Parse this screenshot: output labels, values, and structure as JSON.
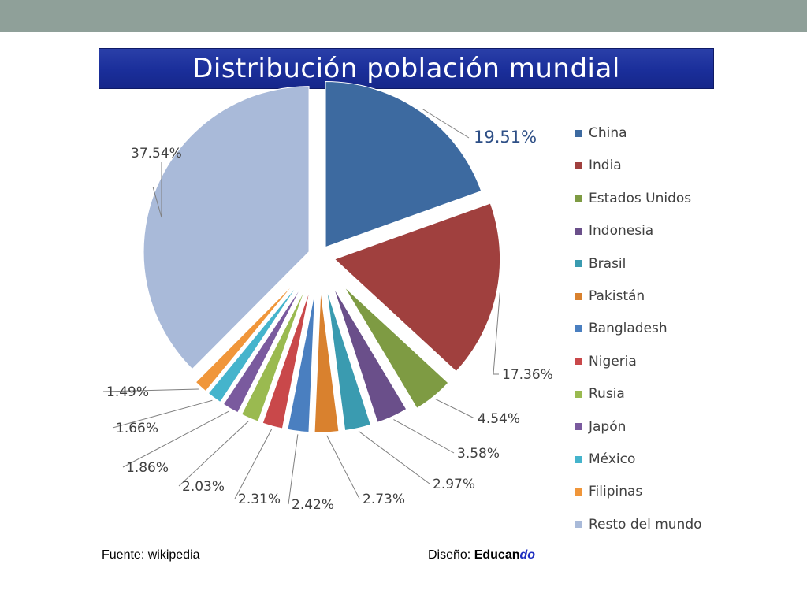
{
  "title": "Distribución población mundial",
  "chart_data": {
    "type": "pie",
    "title": "Distribución población mundial",
    "categories": [
      "China",
      "India",
      "Estados Unidos",
      "Indonesia",
      "Brasil",
      "Pakistán",
      "Bangladesh",
      "Nigeria",
      "Rusia",
      "Japón",
      "México",
      "Filipinas",
      "Resto del mundo"
    ],
    "values": [
      19.51,
      17.36,
      4.54,
      3.58,
      2.97,
      2.73,
      2.42,
      2.31,
      2.03,
      1.86,
      1.66,
      1.49,
      37.54
    ],
    "labels": [
      "19.51%",
      "17.36%",
      "4.54%",
      "3.58%",
      "2.97%",
      "2.73%",
      "2.42%",
      "2.31%",
      "2.03%",
      "1.86%",
      "1.66%",
      "1.49%",
      "37.54%"
    ],
    "colors": [
      "#3d6aa0",
      "#a0403e",
      "#7e9b43",
      "#6a4f8a",
      "#3a9bb0",
      "#d9812e",
      "#4a7fc0",
      "#c9484a",
      "#9aba50",
      "#7a5a9e",
      "#45b4cc",
      "#f0963a",
      "#a9bad9"
    ],
    "legend_position": "right",
    "exploded": true
  },
  "footer": {
    "source": "Fuente: wikipedia",
    "design_label": "Diseño: ",
    "brand_main": "Educan",
    "brand_accent": "do"
  }
}
